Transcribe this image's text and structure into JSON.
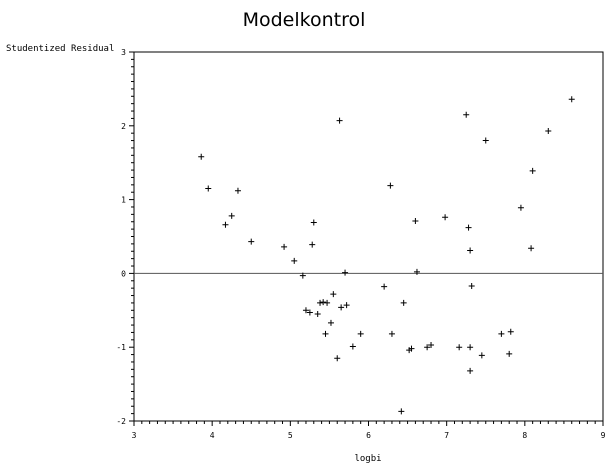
{
  "chart_data": {
    "type": "scatter",
    "title": "Modelkontrol",
    "xlabel": "logbi",
    "ylabel": "Studentized Residual",
    "xlim": [
      3,
      9
    ],
    "ylim": [
      -2,
      3
    ],
    "xticks": [
      "3",
      "4",
      "5",
      "6",
      "7",
      "8",
      "9"
    ],
    "yticks": [
      "-2",
      "-1",
      "0",
      "1",
      "2",
      "3"
    ],
    "reference_line_y": 0,
    "grid": false,
    "marker": "plus",
    "x": [
      3.86,
      3.95,
      4.17,
      4.25,
      4.33,
      4.5,
      4.92,
      5.05,
      5.16,
      5.2,
      5.25,
      5.28,
      5.3,
      5.35,
      5.38,
      5.45,
      5.47,
      5.52,
      5.55,
      5.6,
      5.63,
      5.65,
      5.7,
      5.72,
      5.8,
      5.9,
      6.2,
      6.28,
      6.3,
      6.42,
      6.45,
      6.52,
      6.55,
      6.6,
      6.75,
      6.8,
      6.98,
      7.16,
      7.25,
      7.28,
      7.3,
      7.3,
      7.32,
      7.45,
      7.5,
      7.7,
      7.8,
      7.82,
      7.95,
      8.08,
      8.1,
      8.3,
      8.6,
      6.62,
      7.3,
      5.42
    ],
    "y": [
      1.58,
      1.15,
      0.66,
      0.78,
      1.12,
      0.43,
      0.36,
      0.17,
      -0.03,
      -0.5,
      -0.53,
      0.39,
      0.69,
      -0.55,
      -0.4,
      -0.82,
      -0.4,
      -0.67,
      -0.28,
      -1.15,
      2.07,
      -0.46,
      0.01,
      -0.43,
      -0.99,
      -0.82,
      -0.18,
      1.19,
      -0.82,
      -1.87,
      -0.4,
      -1.04,
      -1.02,
      0.71,
      -1.0,
      -0.97,
      0.76,
      -1.0,
      2.15,
      0.62,
      0.31,
      -1.0,
      -0.17,
      -1.11,
      1.8,
      -0.82,
      -1.09,
      -0.79,
      0.89,
      0.34,
      1.39,
      1.93,
      2.36,
      0.02,
      -1.32,
      -0.39
    ]
  }
}
